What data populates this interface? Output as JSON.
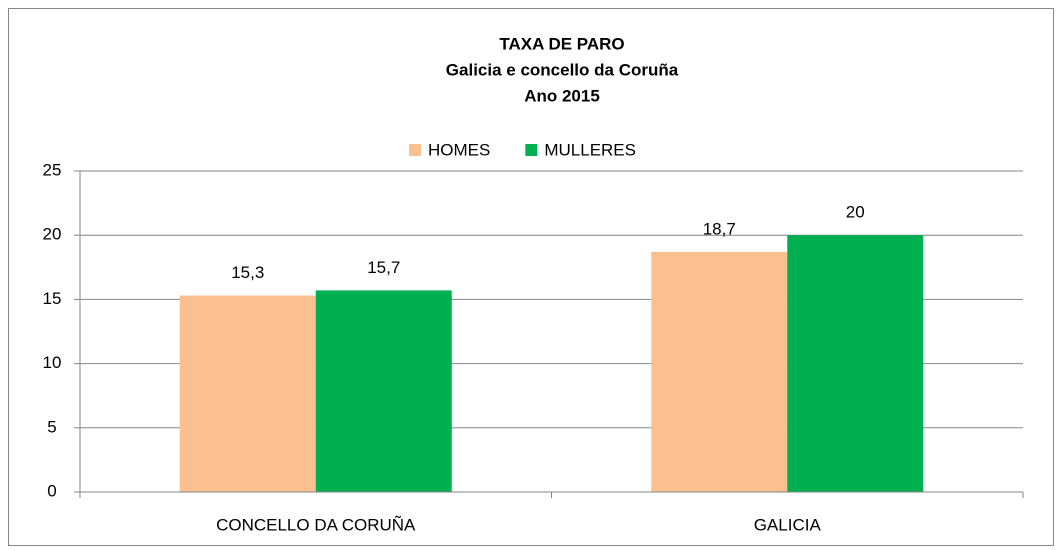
{
  "chart_data": {
    "type": "bar",
    "title": [
      "TAXA DE PARO",
      "Galicia e concello da Coruña",
      "Ano 2015"
    ],
    "categories": [
      "CONCELLO DA CORUÑA",
      "GALICIA"
    ],
    "series": [
      {
        "name": "HOMES",
        "color": "#fac090",
        "values": [
          15.3,
          18.7
        ],
        "value_labels": [
          "15,3",
          "18,7"
        ]
      },
      {
        "name": "MULLERES",
        "color": "#00b050",
        "values": [
          15.7,
          20
        ],
        "value_labels": [
          "15,7",
          "20"
        ]
      }
    ],
    "ylim": [
      0,
      25
    ],
    "yticks": [
      0,
      5,
      10,
      15,
      20,
      25
    ],
    "grid": true,
    "legend": "top"
  }
}
